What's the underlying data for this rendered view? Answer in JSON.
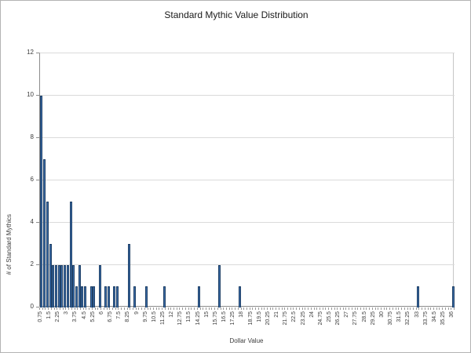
{
  "title": "Standard Mythic Value Distribution",
  "colors": {
    "bar_fill": "#3b6ca8",
    "bar_border": "#1f4066",
    "gridline": "#dadada",
    "axis_line": "#8c8c8c",
    "text": "#3c3c3c"
  },
  "chart_data": {
    "type": "bar",
    "title": "Standard Mythic Value Distribution",
    "xlabel": "Dollar Value",
    "ylabel": "# of Standard Mythics",
    "ylim": [
      0,
      12
    ],
    "yticks": [
      0,
      2,
      4,
      6,
      8,
      10,
      12
    ],
    "grid": true,
    "legend_position": "none",
    "x_axis": {
      "category_start": 0.75,
      "category_end": 36,
      "category_step": 0.25,
      "tick_labels": [
        "0.75",
        "1.5",
        "2.25",
        "3",
        "3.75",
        "4.5",
        "5.25",
        "6",
        "6.75",
        "7.5",
        "8.25",
        "9",
        "9.75",
        "10.5",
        "11.25",
        "12",
        "12.75",
        "13.5",
        "14.25",
        "15",
        "15.75",
        "16.5",
        "17.25",
        "18",
        "18.75",
        "19.5",
        "20.25",
        "21",
        "21.75",
        "22.5",
        "23.25",
        "24",
        "24.75",
        "25.5",
        "26.25",
        "27",
        "27.75",
        "28.5",
        "29.25",
        "30",
        "30.75",
        "31.5",
        "32.25",
        "33",
        "33.75",
        "34.5",
        "35.25",
        "36"
      ],
      "labels_every_n_categories": 3
    },
    "points": [
      {
        "x": 0.75,
        "y": 10
      },
      {
        "x": 1.0,
        "y": 7
      },
      {
        "x": 1.25,
        "y": 5
      },
      {
        "x": 1.5,
        "y": 3
      },
      {
        "x": 1.75,
        "y": 2
      },
      {
        "x": 2.0,
        "y": 2
      },
      {
        "x": 2.25,
        "y": 2
      },
      {
        "x": 2.5,
        "y": 2
      },
      {
        "x": 2.75,
        "y": 2
      },
      {
        "x": 3.0,
        "y": 2
      },
      {
        "x": 3.25,
        "y": 5
      },
      {
        "x": 3.5,
        "y": 2
      },
      {
        "x": 3.75,
        "y": 1
      },
      {
        "x": 4.0,
        "y": 2
      },
      {
        "x": 4.25,
        "y": 1
      },
      {
        "x": 4.5,
        "y": 1
      },
      {
        "x": 5.0,
        "y": 1
      },
      {
        "x": 5.25,
        "y": 1
      },
      {
        "x": 5.75,
        "y": 2
      },
      {
        "x": 6.25,
        "y": 1
      },
      {
        "x": 6.5,
        "y": 1
      },
      {
        "x": 7.0,
        "y": 1
      },
      {
        "x": 7.25,
        "y": 1
      },
      {
        "x": 8.25,
        "y": 3
      },
      {
        "x": 8.75,
        "y": 1
      },
      {
        "x": 9.75,
        "y": 1
      },
      {
        "x": 11.25,
        "y": 1
      },
      {
        "x": 14.25,
        "y": 1
      },
      {
        "x": 16.0,
        "y": 2
      },
      {
        "x": 17.75,
        "y": 1
      },
      {
        "x": 33.0,
        "y": 1
      },
      {
        "x": 36.0,
        "y": 1
      }
    ]
  }
}
